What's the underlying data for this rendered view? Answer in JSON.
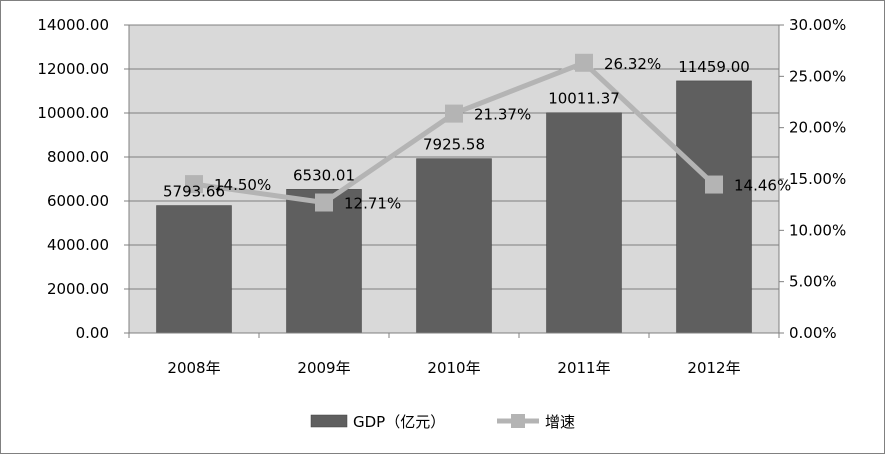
{
  "chart_data": {
    "type": "bar",
    "categories": [
      "2008年",
      "2009年",
      "2010年",
      "2011年",
      "2012年"
    ],
    "series": [
      {
        "name": "GDP（亿元）",
        "type": "bar",
        "axis": "left",
        "values": [
          5793.66,
          6530.01,
          7925.58,
          10011.37,
          11459.0
        ],
        "labels": [
          "5793.66",
          "6530.01",
          "7925.58",
          "10011.37",
          "11459.00"
        ],
        "color": "#5f5f5f"
      },
      {
        "name": "增速",
        "type": "line",
        "axis": "right",
        "values": [
          14.5,
          12.71,
          21.37,
          26.32,
          14.46
        ],
        "labels": [
          "14.50%",
          "12.71%",
          "21.37%",
          "26.32%",
          "14.46%"
        ],
        "color": "#b4b4b4"
      }
    ],
    "y_left": {
      "range": [
        0,
        14000
      ],
      "ticks": [
        "0.00",
        "2000.00",
        "4000.00",
        "6000.00",
        "8000.00",
        "10000.00",
        "12000.00",
        "14000.00"
      ]
    },
    "y_right": {
      "range": [
        0,
        30
      ],
      "ticks": [
        "0.00%",
        "5.00%",
        "10.00%",
        "15.00%",
        "20.00%",
        "25.00%",
        "30.00%"
      ]
    },
    "grid": "horizontal",
    "legend_position": "bottom",
    "plot_background": "#d9d9d9"
  }
}
